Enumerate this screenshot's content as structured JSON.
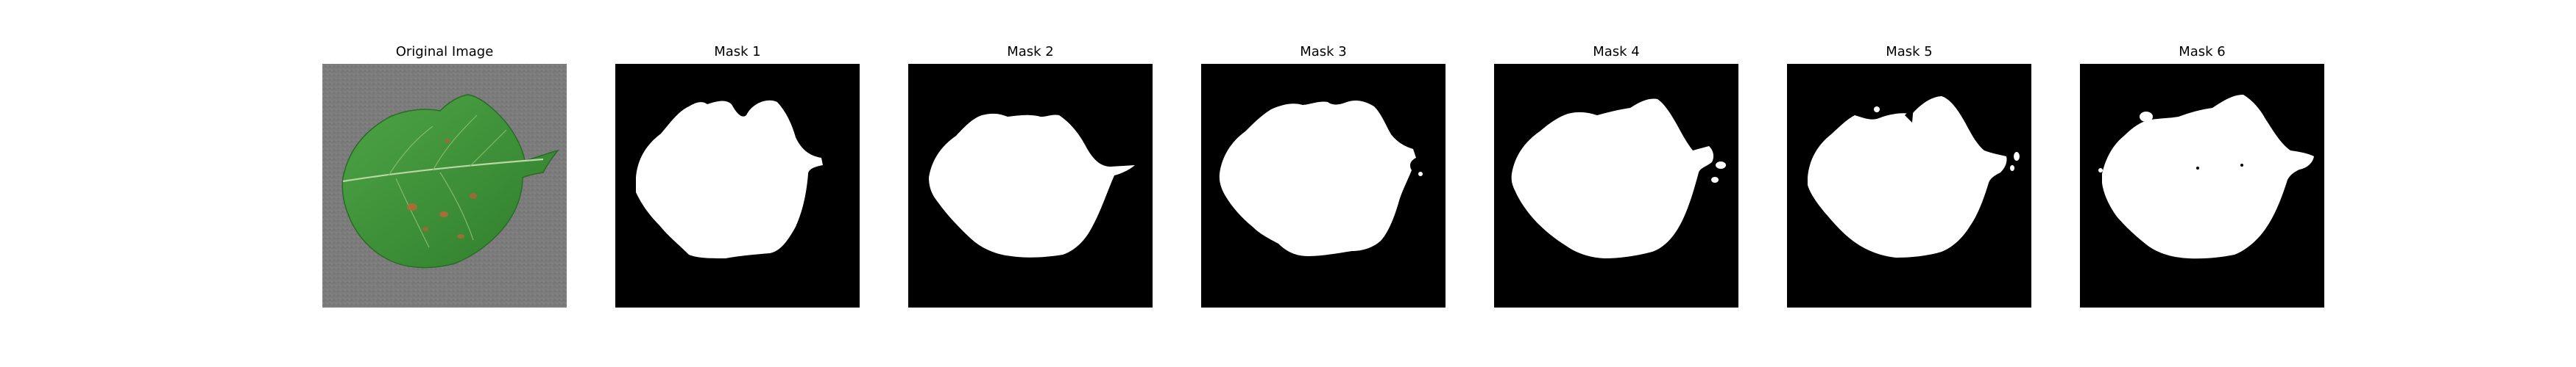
{
  "figure": {
    "panels": [
      {
        "id": "original",
        "title": "Original Image",
        "kind": "photo"
      },
      {
        "id": "mask-1",
        "title": "Mask 1",
        "kind": "mask"
      },
      {
        "id": "mask-2",
        "title": "Mask 2",
        "kind": "mask"
      },
      {
        "id": "mask-3",
        "title": "Mask 3",
        "kind": "mask"
      },
      {
        "id": "mask-4",
        "title": "Mask 4",
        "kind": "mask"
      },
      {
        "id": "mask-5",
        "title": "Mask 5",
        "kind": "mask"
      },
      {
        "id": "mask-6",
        "title": "Mask 6",
        "kind": "mask"
      }
    ]
  },
  "colors": {
    "mask_background": "#000000",
    "mask_foreground": "#ffffff",
    "photo_background": "#7d7d7d",
    "leaf_green": "#3f9a3a",
    "lesion_brown": "#b06a3a"
  }
}
